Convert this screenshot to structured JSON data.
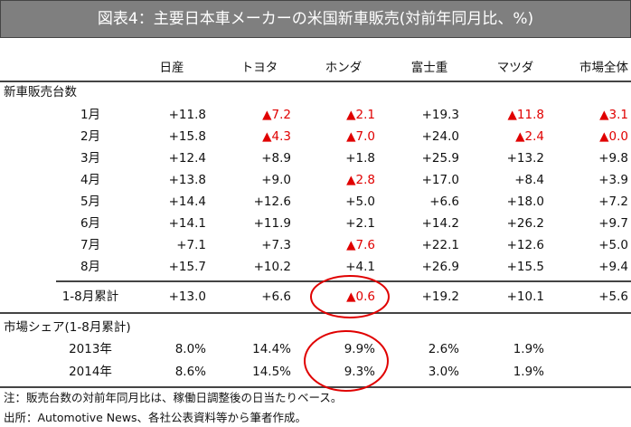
{
  "title": "図表4：主要日本車メーカーの米国新車販売(対前年同月比、%)",
  "columns": [
    "日産",
    "トヨタ",
    "ホンダ",
    "富士重",
    "マツダ",
    "市場全体"
  ],
  "section1": "新車販売台数",
  "monthly": [
    {
      "label": "1月",
      "values": [
        "+11.8",
        "▲7.2",
        "▲2.1",
        "+19.3",
        "▲11.8",
        "▲3.1"
      ]
    },
    {
      "label": "2月",
      "values": [
        "+15.8",
        "▲4.3",
        "▲7.0",
        "+24.0",
        "▲2.4",
        "▲0.0"
      ]
    },
    {
      "label": "3月",
      "values": [
        "+12.4",
        "+8.9",
        "+1.8",
        "+25.9",
        "+13.2",
        "+9.8"
      ]
    },
    {
      "label": "4月",
      "values": [
        "+13.8",
        "+9.0",
        "▲2.8",
        "+17.0",
        "+8.4",
        "+3.9"
      ]
    },
    {
      "label": "5月",
      "values": [
        "+14.4",
        "+12.6",
        "+5.0",
        "+6.6",
        "+18.0",
        "+7.2"
      ]
    },
    {
      "label": "6月",
      "values": [
        "+14.1",
        "+11.9",
        "+2.1",
        "+14.2",
        "+26.2",
        "+9.7"
      ]
    },
    {
      "label": "7月",
      "values": [
        "+7.1",
        "+7.3",
        "▲7.6",
        "+22.1",
        "+12.6",
        "+5.0"
      ]
    },
    {
      "label": "8月",
      "values": [
        "+15.7",
        "+10.2",
        "+4.1",
        "+26.9",
        "+15.5",
        "+9.4"
      ]
    }
  ],
  "cumulative": {
    "label": "1-8月累計",
    "values": [
      "+13.0",
      "+6.6",
      "▲0.6",
      "+19.2",
      "+10.1",
      "+5.6"
    ]
  },
  "section2": "市場シェア(1-8月累計)",
  "share": [
    {
      "label": "2013年",
      "values": [
        "8.0%",
        "14.4%",
        "9.9%",
        "2.6%",
        "1.9%"
      ]
    },
    {
      "label": "2014年",
      "values": [
        "8.6%",
        "14.5%",
        "9.3%",
        "3.0%",
        "1.9%"
      ]
    }
  ],
  "notes": [
    "注：販売台数の対前年同月比は、稼働日調整後の日当たりベース。",
    "出所：Automotive News、各社公表資料等から筆者作成。"
  ],
  "colors": {
    "negative": "#e00000",
    "highlight": "#e00000",
    "title_bg": "#7f7f7f"
  }
}
